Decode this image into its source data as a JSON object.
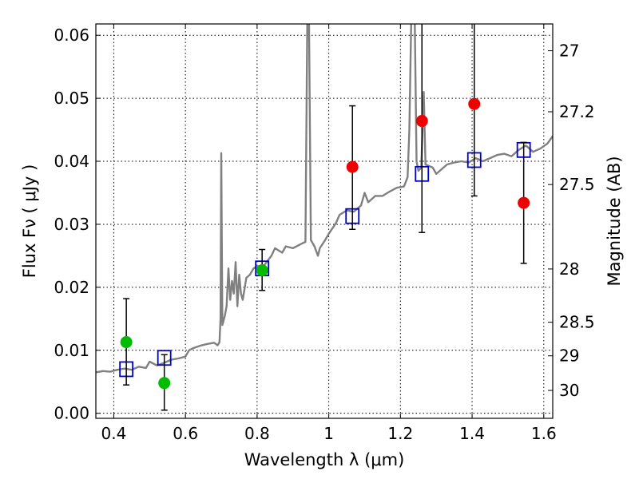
{
  "chart_data": {
    "type": "scatter",
    "title": "",
    "xlabel": "Wavelength  λ (μm)",
    "ylabel": "Flux  Fν  ( μJy )",
    "ylabel_right": "Magnitude (AB)",
    "xlim": [
      0.35,
      1.625
    ],
    "ylim": [
      -0.0008,
      0.0618
    ],
    "grid": true,
    "x_ticks": [
      {
        "value": 0.4,
        "label": "0.4"
      },
      {
        "value": 0.6,
        "label": "0.6"
      },
      {
        "value": 0.8,
        "label": "0.8"
      },
      {
        "value": 1.0,
        "label": "1"
      },
      {
        "value": 1.2,
        "label": "1.2"
      },
      {
        "value": 1.4,
        "label": "1.4"
      },
      {
        "value": 1.6,
        "label": "1.6"
      }
    ],
    "y_ticks": [
      {
        "value": 0.0,
        "label": "0.00"
      },
      {
        "value": 0.01,
        "label": "0.01"
      },
      {
        "value": 0.02,
        "label": "0.02"
      },
      {
        "value": 0.03,
        "label": "0.03"
      },
      {
        "value": 0.04,
        "label": "0.04"
      },
      {
        "value": 0.05,
        "label": "0.05"
      },
      {
        "value": 0.06,
        "label": "0.06"
      }
    ],
    "mag_ticks": [
      {
        "label": "27"
      },
      {
        "label": "27.2"
      },
      {
        "label": "27.5"
      },
      {
        "label": "28"
      },
      {
        "label": "28.5"
      },
      {
        "label": "29"
      },
      {
        "label": "30"
      }
    ],
    "colors": {
      "template": "#808080",
      "model": "#0000cc",
      "optical": "#00bb00",
      "infrared": "#ee0000",
      "errorbar": "#000000"
    },
    "series": [
      {
        "kind": "line",
        "points": [
          [
            0.35,
            0.0065
          ],
          [
            0.37,
            0.0067
          ],
          [
            0.39,
            0.0066
          ],
          [
            0.41,
            0.0069
          ],
          [
            0.43,
            0.0071
          ],
          [
            0.45,
            0.0069
          ],
          [
            0.47,
            0.0074
          ],
          [
            0.49,
            0.0072
          ],
          [
            0.5,
            0.0082
          ],
          [
            0.52,
            0.0076
          ],
          [
            0.54,
            0.008
          ],
          [
            0.56,
            0.0085
          ],
          [
            0.58,
            0.0087
          ],
          [
            0.6,
            0.009
          ],
          [
            0.61,
            0.01
          ],
          [
            0.62,
            0.0103
          ],
          [
            0.64,
            0.0107
          ],
          [
            0.66,
            0.011
          ],
          [
            0.68,
            0.0112
          ],
          [
            0.69,
            0.0108
          ],
          [
            0.695,
            0.0113
          ],
          [
            0.698,
            0.015
          ],
          [
            0.7,
            0.0413
          ],
          [
            0.703,
            0.014
          ],
          [
            0.71,
            0.0155
          ],
          [
            0.715,
            0.017
          ],
          [
            0.72,
            0.023
          ],
          [
            0.725,
            0.018
          ],
          [
            0.73,
            0.021
          ],
          [
            0.735,
            0.019
          ],
          [
            0.74,
            0.024
          ],
          [
            0.745,
            0.017
          ],
          [
            0.75,
            0.022
          ],
          [
            0.755,
            0.019
          ],
          [
            0.76,
            0.018
          ],
          [
            0.77,
            0.0215
          ],
          [
            0.78,
            0.022
          ],
          [
            0.79,
            0.023
          ],
          [
            0.8,
            0.0233
          ],
          [
            0.82,
            0.0235
          ],
          [
            0.84,
            0.025
          ],
          [
            0.85,
            0.0262
          ],
          [
            0.87,
            0.0255
          ],
          [
            0.88,
            0.0265
          ],
          [
            0.9,
            0.0262
          ],
          [
            0.92,
            0.0268
          ],
          [
            0.935,
            0.0272
          ],
          [
            0.94,
            0.062
          ],
          [
            0.945,
            0.062
          ],
          [
            0.95,
            0.0275
          ],
          [
            0.96,
            0.0265
          ],
          [
            0.97,
            0.025
          ],
          [
            0.975,
            0.0262
          ],
          [
            0.99,
            0.0275
          ],
          [
            1.0,
            0.0285
          ],
          [
            1.02,
            0.0302
          ],
          [
            1.03,
            0.0315
          ],
          [
            1.05,
            0.0322
          ],
          [
            1.07,
            0.032
          ],
          [
            1.09,
            0.033
          ],
          [
            1.1,
            0.035
          ],
          [
            1.11,
            0.0335
          ],
          [
            1.13,
            0.0345
          ],
          [
            1.15,
            0.0345
          ],
          [
            1.17,
            0.0352
          ],
          [
            1.19,
            0.0358
          ],
          [
            1.21,
            0.036
          ],
          [
            1.22,
            0.0375
          ],
          [
            1.225,
            0.045
          ],
          [
            1.23,
            0.062
          ],
          [
            1.24,
            0.062
          ],
          [
            1.245,
            0.04
          ],
          [
            1.25,
            0.0385
          ],
          [
            1.258,
            0.039
          ],
          [
            1.265,
            0.051
          ],
          [
            1.27,
            0.0395
          ],
          [
            1.29,
            0.039
          ],
          [
            1.3,
            0.038
          ],
          [
            1.31,
            0.0385
          ],
          [
            1.33,
            0.0395
          ],
          [
            1.35,
            0.0398
          ],
          [
            1.37,
            0.04
          ],
          [
            1.39,
            0.0398
          ],
          [
            1.41,
            0.0405
          ],
          [
            1.43,
            0.04
          ],
          [
            1.45,
            0.0405
          ],
          [
            1.47,
            0.041
          ],
          [
            1.49,
            0.0412
          ],
          [
            1.51,
            0.0408
          ],
          [
            1.53,
            0.0418
          ],
          [
            1.55,
            0.0425
          ],
          [
            1.57,
            0.0415
          ],
          [
            1.59,
            0.042
          ],
          [
            1.61,
            0.0428
          ],
          [
            1.625,
            0.044
          ]
        ]
      },
      {
        "kind": "model-squares",
        "points": [
          [
            0.435,
            0.007
          ],
          [
            0.541,
            0.0088
          ],
          [
            0.814,
            0.023
          ],
          [
            1.066,
            0.0313
          ],
          [
            1.26,
            0.038
          ],
          [
            1.406,
            0.0402
          ],
          [
            1.544,
            0.0418
          ]
        ]
      },
      {
        "kind": "optical-points",
        "points": [
          [
            0.435,
            0.0113
          ],
          [
            0.541,
            0.0048
          ],
          [
            0.814,
            0.0227
          ]
        ],
        "errors": [
          [
            0.0045,
            0.0182
          ],
          [
            0.0005,
            0.0093
          ],
          [
            0.0195,
            0.026
          ]
        ]
      },
      {
        "kind": "infrared-points",
        "points": [
          [
            1.066,
            0.0391
          ],
          [
            1.26,
            0.0464
          ],
          [
            1.406,
            0.0491
          ],
          [
            1.544,
            0.0334
          ]
        ],
        "errors": [
          [
            0.0292,
            0.0488
          ],
          [
            0.0287,
            0.064
          ],
          [
            0.0345,
            0.064
          ],
          [
            0.0238,
            0.043
          ]
        ]
      }
    ]
  }
}
